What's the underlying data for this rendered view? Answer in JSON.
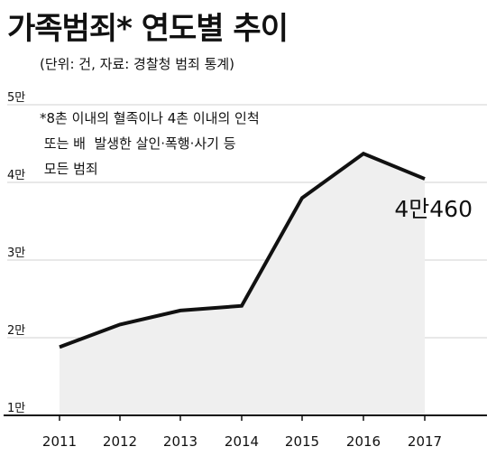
{
  "title": "가족범죄* 연도별 추이",
  "subtitle": "(단위: 건, 자료: 경찰청 범죄 통계)",
  "note_lines": [
    "*8촌 이내의 혈족이나 4촌 이내의 인척",
    " 또는 배  발생한 살인·폭행·사기 등",
    " 모든 범죄"
  ],
  "chart_data": {
    "type": "area",
    "title": "가족범죄* 연도별 추이",
    "x": [
      "2011",
      "2012",
      "2013",
      "2014",
      "2015",
      "2016",
      "2017"
    ],
    "series": [
      {
        "values": [
          18800,
          21700,
          23500,
          24100,
          38000,
          43700,
          40460
        ]
      }
    ],
    "ylim": [
      10000,
      50000
    ],
    "yticks": [
      10000,
      20000,
      30000,
      40000,
      50000
    ],
    "ytick_labels": [
      "1만",
      "2만",
      "3만",
      "4만",
      "5만"
    ],
    "grid": true,
    "annotation": {
      "text": "4만460",
      "index": 6
    },
    "colors": {
      "line": "#111111",
      "fill": "#efefef",
      "grid": "#d0d0d0"
    }
  }
}
